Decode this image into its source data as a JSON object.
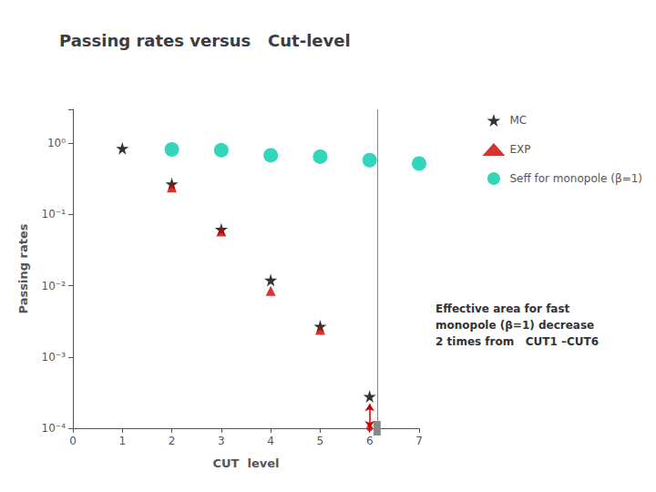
{
  "chart_data": {
    "type": "scatter",
    "title": "Passing rates versus   Cut-level",
    "x_label": "CUT  level",
    "y_label": "Passing rates",
    "xlim": [
      0,
      7
    ],
    "xticks": [
      0,
      1,
      2,
      3,
      4,
      5,
      6,
      7
    ],
    "ylim": [
      0.0001,
      3
    ],
    "yticks": [
      {
        "value": 0.0001,
        "label": "10⁻⁴"
      },
      {
        "value": 0.001,
        "label": "10⁻³"
      },
      {
        "value": 0.01,
        "label": "10⁻²"
      },
      {
        "value": 0.1,
        "label": "10⁻¹"
      },
      {
        "value": 1,
        "label": "10⁰"
      }
    ],
    "log": "y",
    "grid": false,
    "legend": "right",
    "series": [
      {
        "name": "MC",
        "color": "#000000",
        "marker": "star",
        "x": [
          1,
          2,
          3,
          4,
          5,
          6
        ],
        "values": [
          0.85,
          0.27,
          0.062,
          0.012,
          0.0027,
          0.00028
        ]
      },
      {
        "name": "EXP",
        "color": "#cc0000",
        "marker": "triangle",
        "x": [
          2,
          3,
          4,
          5
        ],
        "values": [
          0.24,
          0.058,
          0.0085,
          0.0024
        ]
      },
      {
        "name": "Seff for monopole (β=1)",
        "color": "#00ccaa",
        "marker": "circle",
        "x": [
          2,
          3,
          4,
          5,
          6,
          7
        ],
        "values": [
          0.82,
          0.8,
          0.68,
          0.65,
          0.58,
          0.52
        ]
      }
    ],
    "vlines": [
      {
        "x": 6.15,
        "color": "#888888"
      }
    ],
    "arrow": {
      "x": 6,
      "y_from": 0.0001,
      "y_to": 0.00022,
      "color": "#cc0000"
    },
    "annotations": [
      {
        "text": "Effective area for fast\nmonopole (β=1) decrease\n2 times from   CUT1 –CUT6"
      }
    ]
  }
}
